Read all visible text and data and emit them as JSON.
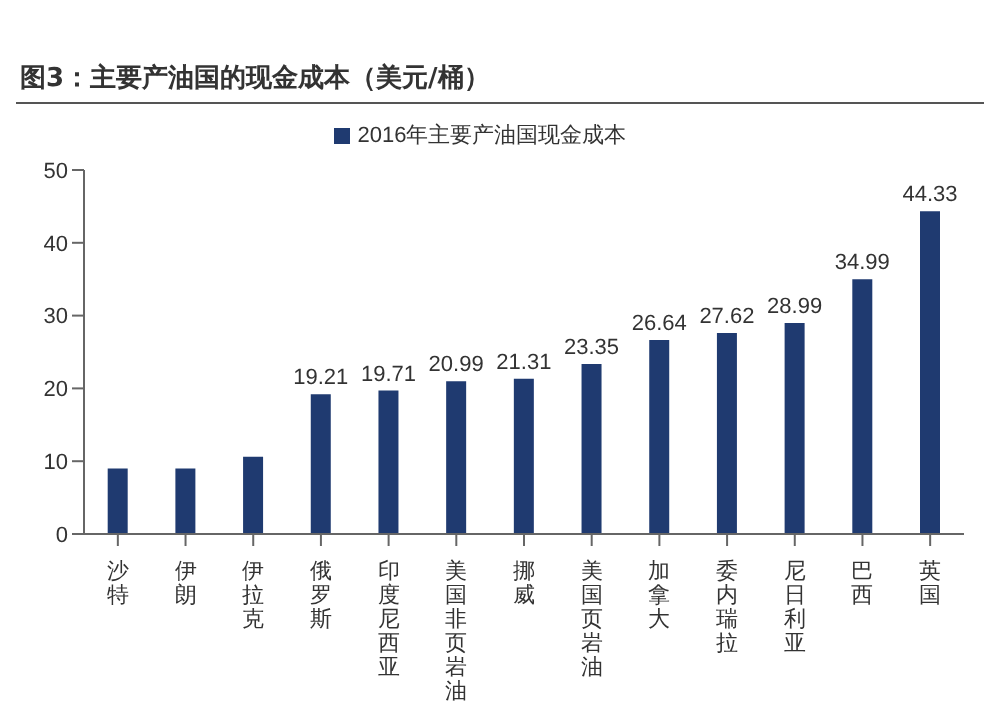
{
  "chart_data": {
    "type": "bar",
    "title": "图3：主要产油国的现金成本（美元/桶）",
    "categories": [
      "沙特",
      "伊朗",
      "伊拉克",
      "俄罗斯",
      "印度尼西亚",
      "美国非页岩油",
      "挪威",
      "美国页岩油",
      "加拿大",
      "委内瑞拉",
      "尼日利亚",
      "巴西",
      "英国"
    ],
    "series": [
      {
        "name": "2016年主要产油国现金成本",
        "color": "#1f3a70",
        "values": [
          9,
          9,
          10.6,
          19.21,
          19.71,
          20.99,
          21.31,
          23.35,
          26.64,
          27.62,
          28.99,
          34.99,
          44.33
        ],
        "value_labels": [
          null,
          null,
          null,
          "19.21",
          "19.71",
          "20.99",
          "21.31",
          "23.35",
          "26.64",
          "27.62",
          "28.99",
          "34.99",
          "44.33"
        ]
      }
    ],
    "ylim": [
      0,
      50
    ],
    "yticks": [
      0,
      10,
      20,
      30,
      40,
      50
    ],
    "grid": false,
    "legend": "top"
  }
}
